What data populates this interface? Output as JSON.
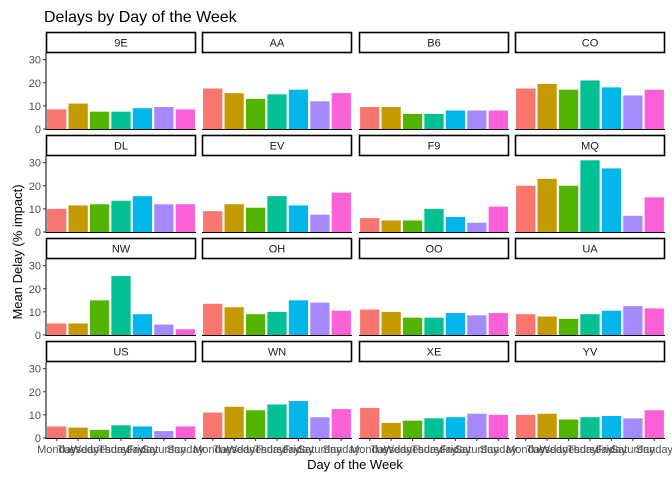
{
  "chart_data": {
    "type": "bar",
    "title": "Delays by Day of the Week",
    "xlabel": "Day of the Week",
    "ylabel": "Mean Delay (% impact)",
    "ylim": [
      0,
      32
    ],
    "yticks": [
      0,
      10,
      20,
      30
    ],
    "grid": false,
    "legend": "none",
    "categories": [
      "Monday",
      "Tuesday",
      "Wednesday",
      "Thursday",
      "Friday",
      "Saturday",
      "Sunday"
    ],
    "colors": [
      "#F8766D",
      "#C49A00",
      "#53B400",
      "#00C094",
      "#00B6EB",
      "#A58AFF",
      "#FB61D7"
    ],
    "panels": [
      {
        "label": "9E",
        "values": [
          8.5,
          11,
          7.5,
          7.5,
          9,
          9.5,
          8.5
        ]
      },
      {
        "label": "AA",
        "values": [
          17.5,
          15.5,
          13,
          15,
          17,
          12,
          15.5
        ]
      },
      {
        "label": "B6",
        "values": [
          9.5,
          9.5,
          6.5,
          6.5,
          8,
          8,
          8
        ]
      },
      {
        "label": "CO",
        "values": [
          17.5,
          19.5,
          17,
          21,
          18,
          14.5,
          17
        ]
      },
      {
        "label": "DL",
        "values": [
          10,
          11.5,
          12,
          13.5,
          15.5,
          12,
          12
        ]
      },
      {
        "label": "EV",
        "values": [
          9,
          12,
          10.5,
          15.5,
          11.5,
          7.5,
          17
        ]
      },
      {
        "label": "F9",
        "values": [
          6,
          5,
          5,
          10,
          6.5,
          4,
          11
        ]
      },
      {
        "label": "MQ",
        "values": [
          20,
          23,
          20,
          31,
          27.5,
          7,
          15
        ]
      },
      {
        "label": "NW",
        "values": [
          5,
          5,
          15,
          25.5,
          9,
          4.5,
          2.5
        ]
      },
      {
        "label": "OH",
        "values": [
          13.5,
          12,
          9,
          10,
          15,
          14,
          10.5
        ]
      },
      {
        "label": "OO",
        "values": [
          11,
          10,
          7.5,
          7.5,
          9.5,
          8.5,
          9.5
        ]
      },
      {
        "label": "UA",
        "values": [
          9,
          8,
          7,
          9,
          10.5,
          12.5,
          11.5
        ]
      },
      {
        "label": "US",
        "values": [
          5,
          4.5,
          3.5,
          5.5,
          5,
          3,
          5
        ]
      },
      {
        "label": "WN",
        "values": [
          11,
          13.5,
          12,
          14.5,
          16,
          9,
          12.5
        ]
      },
      {
        "label": "XE",
        "values": [
          13,
          6.5,
          7.5,
          8.5,
          9,
          10.5,
          10
        ]
      },
      {
        "label": "YV",
        "values": [
          10,
          10.5,
          8,
          9,
          9.5,
          8.5,
          12
        ]
      }
    ]
  }
}
